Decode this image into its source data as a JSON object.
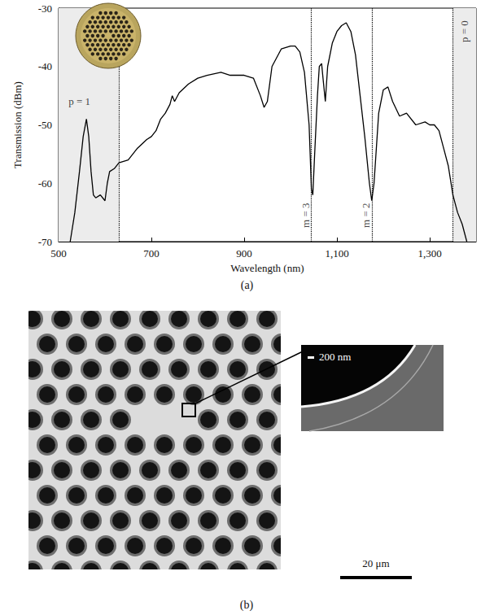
{
  "chart_data": {
    "type": "line",
    "x_label": "Wavelength (nm)",
    "y_label": "Transmission (dBm)",
    "x": [
      525,
      535,
      545,
      553,
      560,
      565,
      570,
      575,
      580,
      590,
      600,
      605,
      610,
      620,
      630,
      650,
      670,
      690,
      700,
      710,
      720,
      730,
      740,
      745,
      750,
      760,
      780,
      800,
      820,
      850,
      870,
      900,
      920,
      935,
      943,
      950,
      960,
      980,
      1000,
      1010,
      1020,
      1030,
      1040,
      1045,
      1048,
      1052,
      1058,
      1062,
      1067,
      1070,
      1075,
      1080,
      1090,
      1100,
      1110,
      1120,
      1130,
      1140,
      1150,
      1160,
      1170,
      1175,
      1180,
      1190,
      1200,
      1210,
      1220,
      1235,
      1250,
      1270,
      1290,
      1300,
      1310,
      1320,
      1330,
      1340,
      1350,
      1360,
      1370,
      1380
    ],
    "values": [
      -70,
      -65,
      -58,
      -52,
      -49,
      -52,
      -58,
      -62,
      -62.5,
      -62,
      -63,
      -60,
      -58,
      -57.5,
      -56.5,
      -56,
      -54,
      -52.5,
      -52,
      -51,
      -49,
      -48,
      -46.5,
      -45,
      -46,
      -44.5,
      -43,
      -42,
      -41.5,
      -41,
      -41.5,
      -41.5,
      -42,
      -45,
      -47,
      -46,
      -40,
      -37,
      -36.5,
      -36.5,
      -37.5,
      -41,
      -50,
      -61,
      -62,
      -55,
      -45,
      -40,
      -39.5,
      -42,
      -46,
      -40,
      -36,
      -34,
      -33,
      -32.5,
      -34,
      -38,
      -45,
      -52,
      -60,
      -63,
      -60,
      -48,
      -44,
      -43.5,
      -46,
      -48.5,
      -48,
      -50,
      -49.5,
      -50,
      -50,
      -51,
      -54,
      -57,
      -62,
      -65,
      -67,
      -70
    ],
    "color": "#000000",
    "xlim": [
      500,
      1400
    ],
    "xticks": [
      500,
      700,
      900,
      1100,
      1300
    ],
    "ylim": [
      -70,
      -30
    ],
    "yticks": [
      -70,
      -60,
      -50,
      -40,
      -30
    ],
    "grid": false,
    "vlines": [
      630,
      1045,
      1175,
      1350
    ],
    "shaded_ranges": [
      [
        500,
        630
      ],
      [
        1350,
        1400
      ]
    ],
    "annotations": [
      {
        "text": "p = 1",
        "x": 545,
        "y": -46
      },
      {
        "text": "m = 3",
        "x": 1033,
        "y": -65.5
      },
      {
        "text": "m = 2",
        "x": 1163,
        "y": -65.5
      },
      {
        "text": "p = 0",
        "x": 1375,
        "y": -34
      }
    ]
  },
  "figure": {
    "panel_a_label": "(a)",
    "panel_b_label": "(b)",
    "panel_b_scale_bar": "20 μm",
    "panel_b_inset_scale_bar": "200 nm"
  }
}
